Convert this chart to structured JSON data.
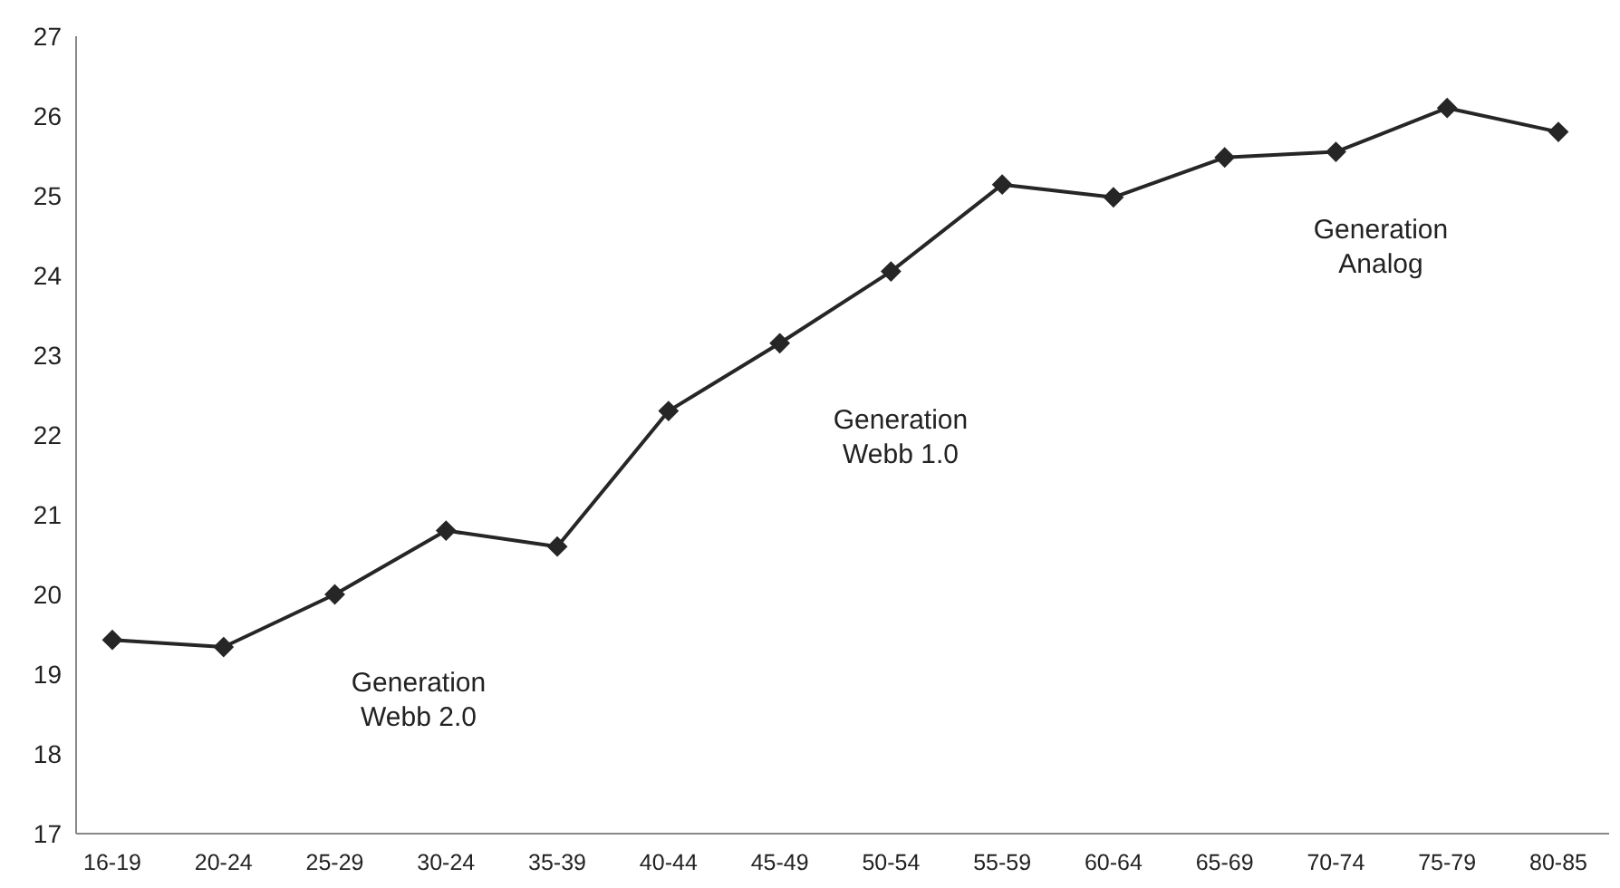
{
  "chart_data": {
    "type": "line",
    "categories": [
      "16-19",
      "20-24",
      "25-29",
      "30-24",
      "35-39",
      "40-44",
      "45-49",
      "50-54",
      "55-59",
      "60-64",
      "65-69",
      "70-74",
      "75-79",
      "80-85"
    ],
    "series": [
      {
        "color": "#262626",
        "values": [
          19.43,
          19.34,
          20.0,
          20.8,
          20.6,
          22.3,
          23.15,
          24.05,
          25.14,
          24.98,
          25.48,
          25.55,
          26.1,
          25.8
        ]
      }
    ],
    "ylim": [
      17,
      27
    ],
    "yticks": [
      17,
      18,
      19,
      20,
      21,
      22,
      23,
      24,
      25,
      26,
      27
    ],
    "grid": false,
    "marker": "diamond",
    "line_style": "solid",
    "annotations": [
      "Generation\nWebb 2.0",
      "Generation\nWebb 1.0",
      "Generation\nAnalog"
    ]
  }
}
